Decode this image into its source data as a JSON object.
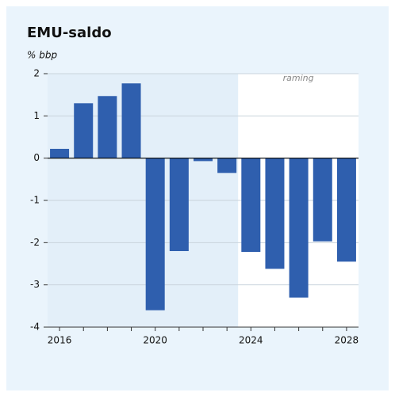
{
  "chart_data": {
    "type": "bar",
    "title": "EMU-saldo",
    "y_label": "% bbp",
    "annotation": "raming",
    "categories": [
      "2016",
      null,
      null,
      null,
      "2020",
      null,
      null,
      null,
      "2024",
      null,
      null,
      null,
      "2028"
    ],
    "values": [
      0.22,
      1.3,
      1.47,
      1.77,
      -3.6,
      -2.2,
      -0.07,
      -0.35,
      -2.22,
      -2.62,
      -3.3,
      -1.97,
      -2.45
    ],
    "color": "#2f5fae",
    "ylim": [
      -4,
      2
    ],
    "yticks": [
      -4,
      -3,
      -2,
      -1,
      0,
      1,
      2
    ],
    "grid": true
  }
}
